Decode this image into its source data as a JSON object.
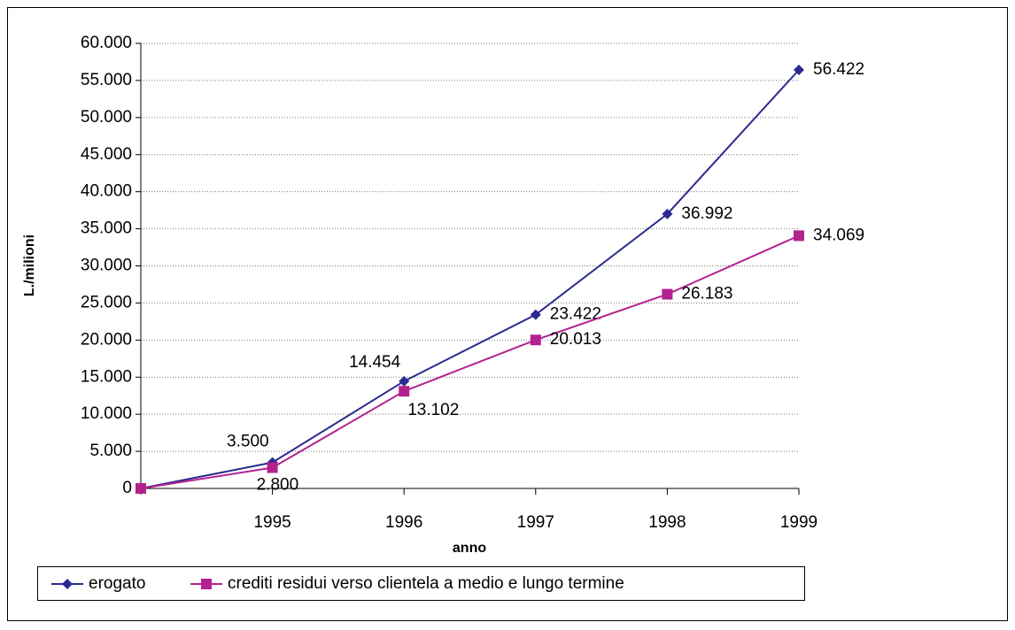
{
  "chart_data": {
    "type": "line",
    "x_label": "anno",
    "y_label": "L./milioni",
    "categories": [
      null,
      "1995",
      "1996",
      "1997",
      "1998",
      "1999"
    ],
    "series": [
      {
        "name": "erogato",
        "color": "#2b2b8f",
        "marker": "diamond",
        "values": [
          0,
          3500,
          14454,
          23422,
          36992,
          56422
        ],
        "value_labels": [
          null,
          "3.500",
          "14.454",
          "23.422",
          "36.992",
          "56.422"
        ]
      },
      {
        "name": "crediti residui verso clientela a medio e lungo termine",
        "color": "#b3228f",
        "marker": "square",
        "values": [
          0,
          2800,
          13102,
          20013,
          26183,
          34069
        ],
        "value_labels": [
          null,
          "2.800",
          "13.102",
          "20.013",
          "26.183",
          "34.069"
        ]
      }
    ],
    "ylim": [
      0,
      60000
    ],
    "yticks": [
      0,
      {
        "value": 5000,
        "label": "5.000"
      },
      {
        "value": 10000,
        "label": "10.000"
      },
      {
        "value": 15000,
        "label": "15.000"
      },
      {
        "value": 20000,
        "label": "20.000"
      },
      {
        "value": 25000,
        "label": "25.000"
      },
      {
        "value": 30000,
        "label": "30.000"
      },
      {
        "value": 35000,
        "label": "35.000"
      },
      {
        "value": 40000,
        "label": "40.000"
      },
      {
        "value": 45000,
        "label": "45.000"
      },
      {
        "value": 50000,
        "label": "50.000"
      },
      {
        "value": 55000,
        "label": "55.000"
      },
      {
        "value": 60000,
        "label": "60.000"
      }
    ],
    "grid": true,
    "legend": "bottom"
  }
}
